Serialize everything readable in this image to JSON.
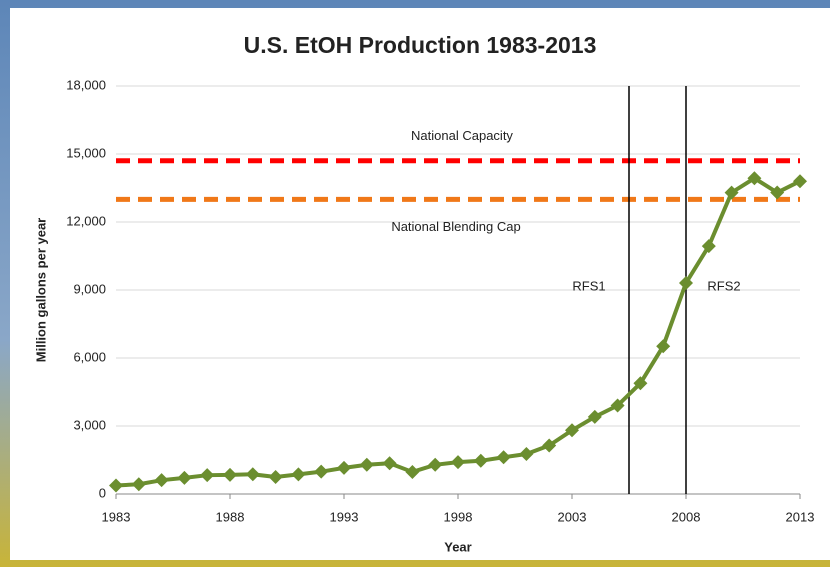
{
  "chart_data": {
    "type": "line",
    "title": "U.S. EtOH Production 1983-2013",
    "x_label": "Year",
    "y_label": "Million gallons per year",
    "x": [
      1983,
      1984,
      1985,
      1986,
      1987,
      1988,
      1989,
      1990,
      1991,
      1992,
      1993,
      1994,
      1995,
      1996,
      1997,
      1998,
      1999,
      2000,
      2001,
      2002,
      2003,
      2004,
      2005,
      2006,
      2007,
      2008,
      2009,
      2010,
      2011,
      2012,
      2013
    ],
    "values": [
      375,
      430,
      610,
      710,
      830,
      845,
      870,
      748,
      866,
      985,
      1154,
      1289,
      1358,
      973,
      1288,
      1405,
      1465,
      1622,
      1765,
      2140,
      2810,
      3404,
      3904,
      4884,
      6521,
      9309,
      10938,
      13298,
      13929,
      13300,
      13800
    ],
    "color": "#6b8e2f",
    "xlim": [
      1983,
      2013
    ],
    "xticks": [
      1983,
      1988,
      1993,
      1998,
      2003,
      2008,
      2013
    ],
    "ylim": [
      0,
      18000
    ],
    "yticks": [
      0,
      {
        "value": 3000,
        "label": "3,000"
      },
      {
        "value": 6000,
        "label": "6,000"
      },
      {
        "value": 9000,
        "label": "9,000"
      },
      {
        "value": 12000,
        "label": "12,000"
      },
      {
        "value": 15000,
        "label": "15,000"
      },
      {
        "value": 18000,
        "label": "18,000"
      }
    ],
    "grid": true,
    "hlines": [
      {
        "label": "National Capacity",
        "value": 14700,
        "color": "#ff0000"
      },
      {
        "label": "National Blending  Cap",
        "value": 13000,
        "color": "#f07818"
      }
    ],
    "vlines": [
      {
        "label": "RFS1",
        "value": 2005.5,
        "color": "#000000"
      },
      {
        "label": "RFS2",
        "value": 2008,
        "color": "#000000"
      }
    ]
  }
}
